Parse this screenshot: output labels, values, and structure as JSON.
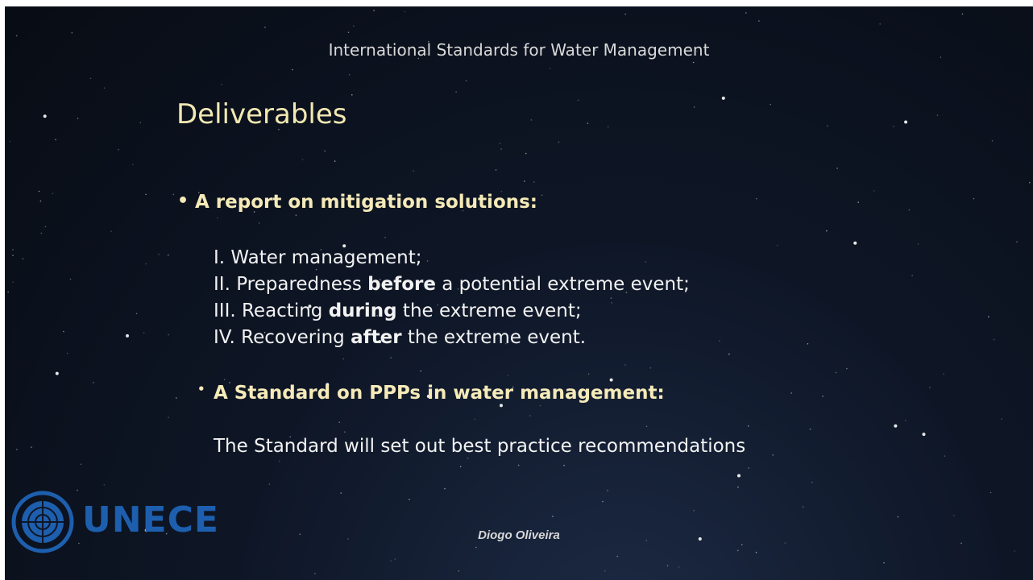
{
  "header": {
    "title": "International Standards for Water Management"
  },
  "slide": {
    "title": "Deliverables",
    "sections": [
      {
        "heading": "A report on mitigation solutions:",
        "items": [
          [
            {
              "text": "I. Water management;"
            }
          ],
          [
            {
              "text": "II. Preparedness "
            },
            {
              "text": "before",
              "bold": true
            },
            {
              "text": " a potential extreme event;"
            }
          ],
          [
            {
              "text": "III. Reacting "
            },
            {
              "text": "during",
              "bold": true
            },
            {
              "text": " the extreme event;"
            }
          ],
          [
            {
              "text": "IV. Recovering "
            },
            {
              "text": "after",
              "bold": true
            },
            {
              "text": " the extreme event."
            }
          ]
        ]
      },
      {
        "heading": "A Standard on PPPs in water management:",
        "items": [
          [
            {
              "text": "The Standard will set out best practice recommendations"
            }
          ]
        ]
      }
    ]
  },
  "footer": {
    "logo": "UNECE",
    "author": "Diogo Oliveira"
  }
}
